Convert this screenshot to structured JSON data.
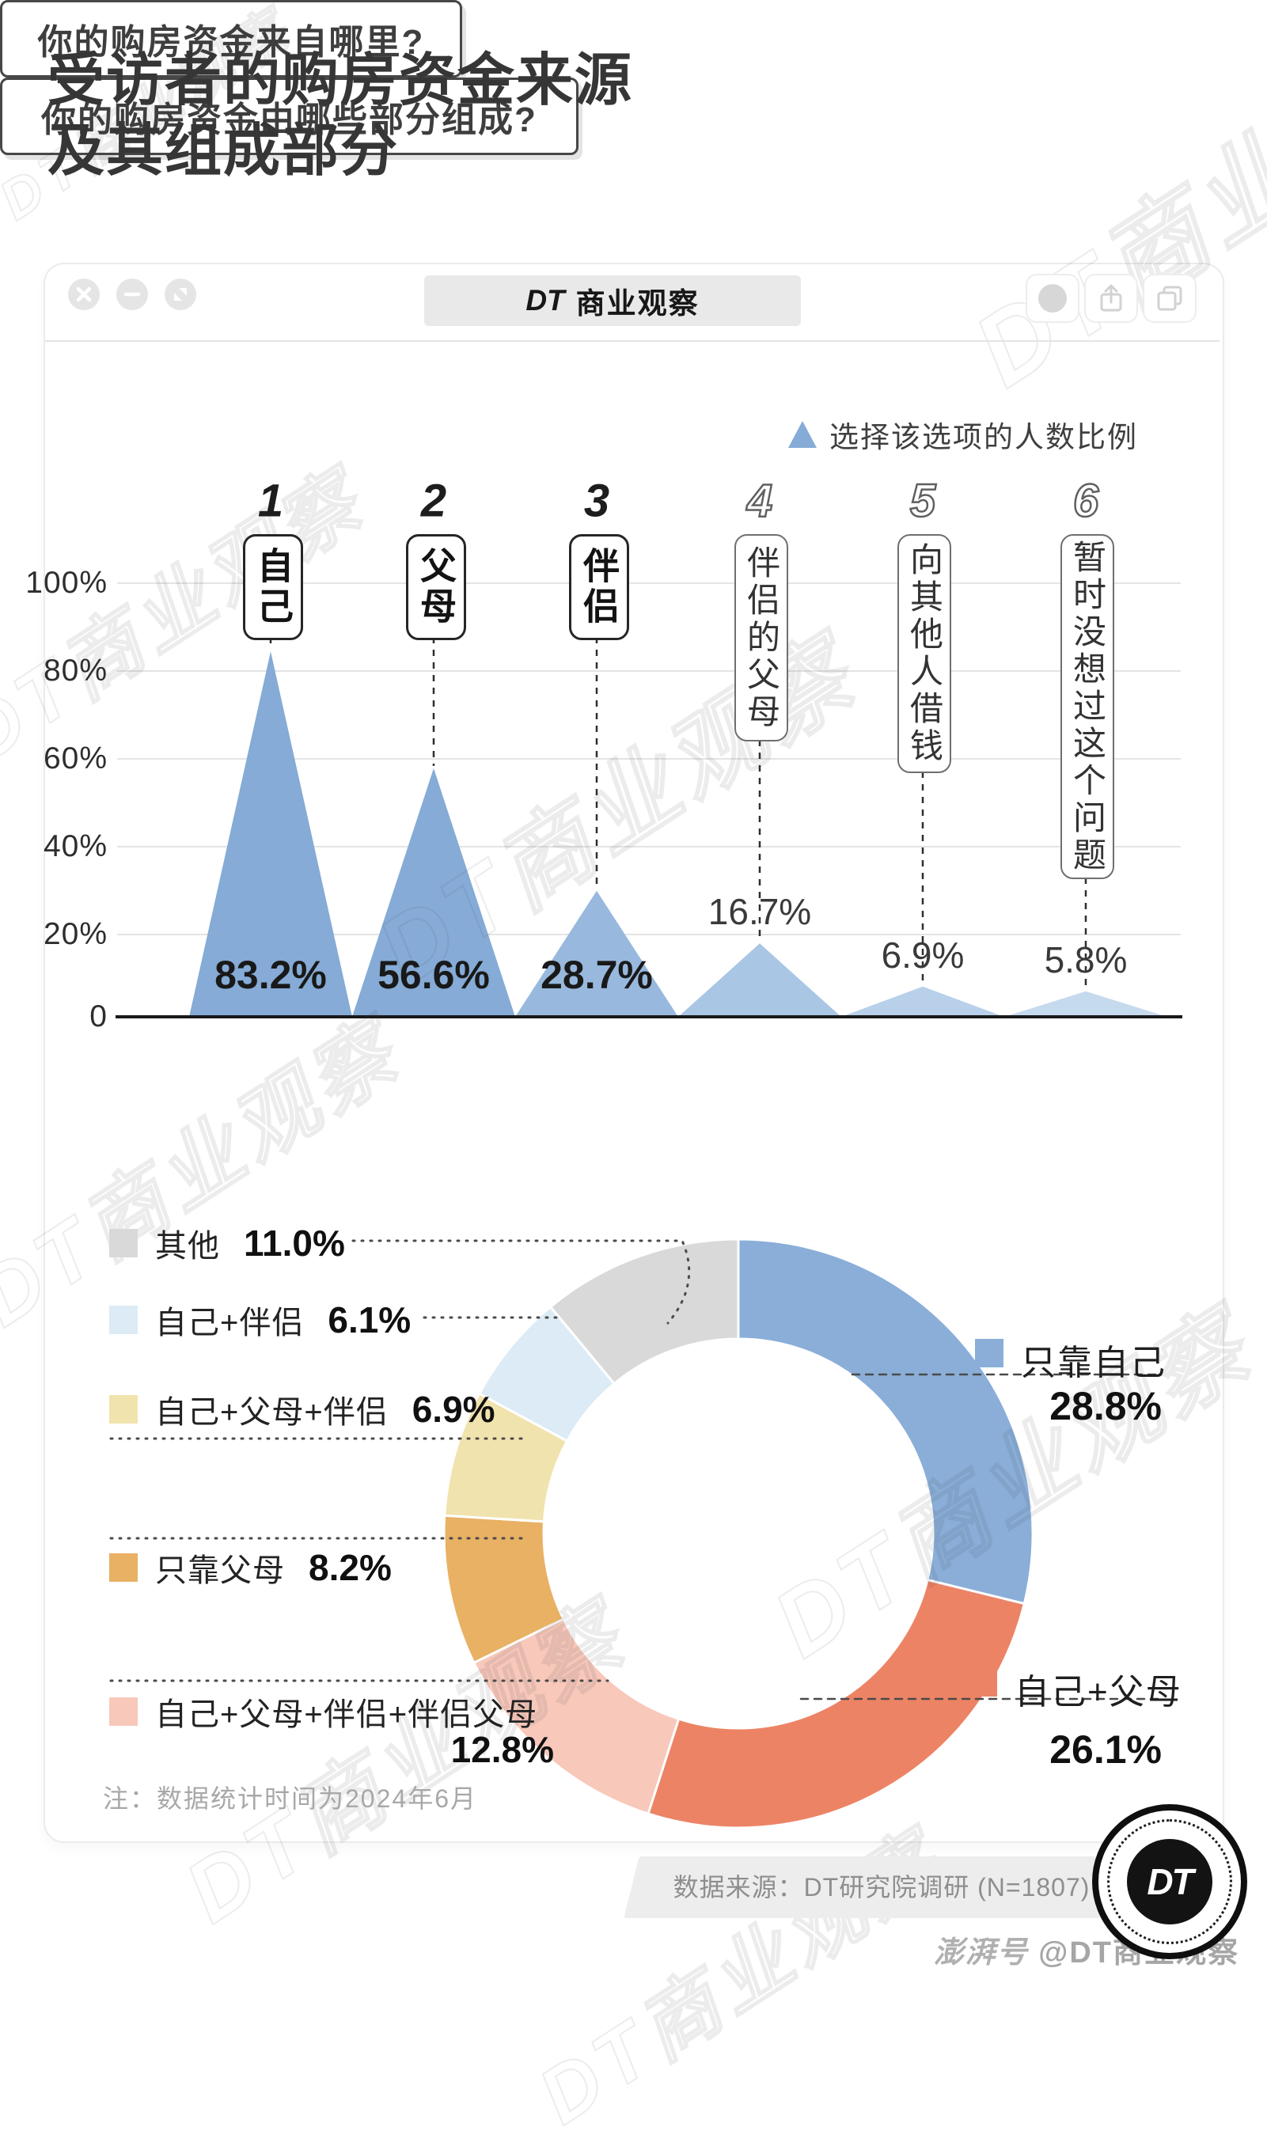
{
  "page": {
    "title_line1": "受访者的购房资金来源",
    "title_line2": "及其组成部分",
    "watermark_text": "DT商业观察",
    "credit_logo": "澎湃号",
    "credit_handle": "@DT商业观察"
  },
  "browser": {
    "tab_dt": "DT",
    "tab_name": "商业观察"
  },
  "chart1": {
    "question": "你的购房资金来自哪里?",
    "legend_label": "选择该选项的人数比例",
    "ranks": [
      "1",
      "2",
      "3",
      "4",
      "5",
      "6"
    ],
    "y_ticks": [
      "100%",
      "80%",
      "60%",
      "40%",
      "20%",
      "0"
    ]
  },
  "chart2": {
    "question": "你的购房资金由哪些部分组成?",
    "left_legend": [
      {
        "label": "其他",
        "value": "11.0%",
        "color": "#d9d9d9"
      },
      {
        "label": "自己+伴侣",
        "value": "6.1%",
        "color": "#dcebf5"
      },
      {
        "label": "自己+父母+伴侣",
        "value": "6.9%",
        "color": "#f1e3ad"
      },
      {
        "label": "只靠父母",
        "value": "8.2%",
        "color": "#e9b164"
      },
      {
        "label": "自己+父母+伴侣+伴侣父母",
        "value": "12.8%",
        "color": "#f8c8ba"
      }
    ],
    "right_legend": [
      {
        "label": "只靠自己",
        "value": "28.8%",
        "color": "#8aaed8"
      },
      {
        "label": "自己+父母",
        "value": "26.1%",
        "color": "#ed8365"
      }
    ]
  },
  "footer": {
    "note": "注：数据统计时间为2024年6月",
    "source": "数据来源：DT研究院调研 (N=1807)",
    "logo_text": "DT"
  },
  "chart_data": [
    {
      "type": "area",
      "style": "triangle-peaks",
      "title": "你的购房资金来自哪里?",
      "legend": "选择该选项的人数比例",
      "categories": [
        "自己",
        "父母",
        "伴侣",
        "伴侣的父母",
        "向其他人借钱",
        "暂时没想过这个问题"
      ],
      "values": [
        83.2,
        56.6,
        28.7,
        16.7,
        6.9,
        5.8
      ],
      "value_labels": [
        "83.2%",
        "56.6%",
        "28.7%",
        "16.7%",
        "6.9%",
        "5.8%"
      ],
      "xlabel": "",
      "ylabel": "",
      "ylim": [
        0,
        100
      ],
      "y_ticks": [
        "100%",
        "80%",
        "60%",
        "40%",
        "20%",
        "0"
      ],
      "grid": true,
      "colors": [
        "#85abd6",
        "#85abd6",
        "#98b9dd",
        "#a9c6e4",
        "#b8d0e9",
        "#c6daee"
      ]
    },
    {
      "type": "pie",
      "donut": true,
      "title": "你的购房资金由哪些部分组成?",
      "labels": [
        "只靠自己",
        "自己+父母",
        "自己+父母+伴侣+伴侣父母",
        "只靠父母",
        "自己+父母+伴侣",
        "自己+伴侣",
        "其他"
      ],
      "values": [
        28.8,
        26.1,
        12.8,
        8.2,
        6.9,
        6.1,
        11.0
      ],
      "colors": [
        "#8aaed8",
        "#ed8365",
        "#f8c8ba",
        "#e9b164",
        "#f1e3ad",
        "#dcebf5",
        "#d9d9d9"
      ],
      "start_angle_deg": 0,
      "clockwise": true,
      "legend_position": "sides"
    }
  ]
}
